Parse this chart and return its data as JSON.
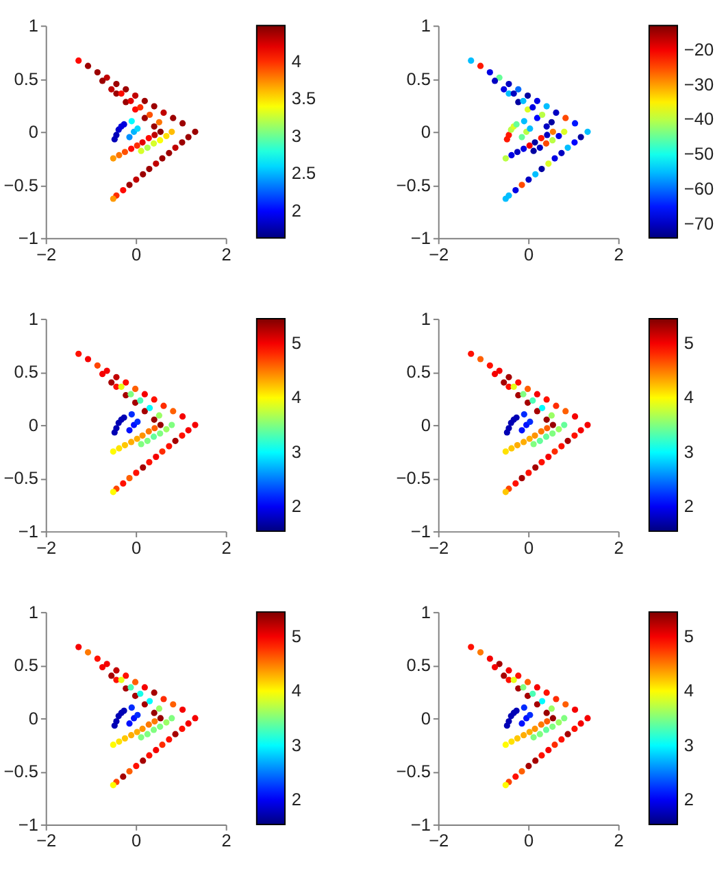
{
  "chart_data": [
    {
      "type": "scatter",
      "marker": "circle",
      "grid": false,
      "xlim": [
        -2,
        2
      ],
      "ylim": [
        -1,
        1
      ],
      "xticks": [
        -2,
        0,
        2
      ],
      "yticks": [
        -1,
        -0.5,
        0,
        0.5,
        1
      ],
      "clim": [
        1.64,
        4.48
      ],
      "cticks": [
        2,
        2.5,
        3,
        3.5,
        4
      ],
      "x": [
        -1.27,
        -1.06,
        -0.85,
        -0.64,
        -0.43,
        -0.22,
        -0.01,
        0.2,
        0.41,
        0.62,
        0.83,
        1.04,
        1.32,
        -0.74,
        -0.54,
        -0.43,
        -0.22,
        -0.01,
        0.2,
        0.41,
        0.55,
        -0.32,
        -0.11,
        0.1,
        0.31,
        0.52,
        0.8,
        0.68,
        0.54,
        0.4,
        0.26,
        0.12,
        1.17,
        1.03,
        0.88,
        0.74,
        0.59,
        0.45,
        0.3,
        0.16,
        0.01,
        -0.14,
        -0.28,
        -0.43,
        -0.5,
        0.42,
        0.29,
        0.15,
        0.03,
        -0.1,
        -0.24,
        -0.37,
        -0.5,
        -0.47,
        -0.43,
        -0.38,
        -0.32,
        -0.26,
        -0.14,
        -0.04,
        0.04,
        -0.09
      ],
      "values": [
        0.67,
        0.62,
        0.56,
        0.51,
        0.45,
        0.4,
        0.34,
        0.29,
        0.24,
        0.18,
        0.13,
        0.08,
        0,
        0.48,
        0.4,
        0.36,
        0.28,
        0.21,
        0.13,
        0.05,
        0,
        0.36,
        0.29,
        0.23,
        0.16,
        0.09,
        0,
        -0.04,
        -0.08,
        -0.11,
        -0.15,
        -0.18,
        -0.05,
        -0.1,
        -0.15,
        -0.2,
        -0.25,
        -0.3,
        -0.35,
        -0.4,
        -0.45,
        -0.5,
        -0.55,
        -0.6,
        -0.63,
        -0.03,
        -0.06,
        -0.1,
        -0.13,
        -0.16,
        -0.19,
        -0.22,
        -0.25,
        -0.07,
        -0.03,
        0.02,
        0.05,
        0.07,
        -0.05,
        0,
        0.03,
        0.1
      ],
      "cvalues": [
        4.1,
        4.4,
        4.4,
        4.3,
        4.4,
        4.4,
        4.3,
        4.4,
        4.4,
        4.3,
        4.4,
        4.4,
        4.4,
        4.4,
        4.3,
        4.4,
        4.4,
        4.1,
        4.4,
        4.4,
        4.45,
        4.1,
        4.2,
        4,
        3.9,
        3.8,
        3.6,
        3.5,
        3.4,
        3.3,
        3.2,
        3.3,
        4.4,
        4.4,
        4.3,
        4.4,
        4.4,
        4.3,
        4.4,
        4.4,
        4.3,
        4.4,
        4.1,
        4,
        3.7,
        4.3,
        4.1,
        4.2,
        4,
        4.1,
        3.9,
        3.8,
        3.7,
        1.8,
        1.8,
        1.85,
        1.9,
        1.9,
        2.4,
        2.5,
        2.6,
        2.7
      ]
    },
    {
      "type": "scatter",
      "marker": "circle",
      "grid": false,
      "xlim": [
        -2,
        2
      ],
      "ylim": [
        -1,
        1
      ],
      "xticks": [
        -2,
        0,
        2
      ],
      "yticks": [
        -1,
        -0.5,
        0,
        0.5,
        1
      ],
      "clim": [
        -74,
        -13
      ],
      "cticks": [
        -70,
        -60,
        -50,
        -40,
        -30,
        -20
      ],
      "x": [
        -1.27,
        -1.06,
        -0.85,
        -0.64,
        -0.43,
        -0.22,
        -0.01,
        0.2,
        0.41,
        0.62,
        0.83,
        1.04,
        1.32,
        -0.74,
        -0.54,
        -0.43,
        -0.22,
        -0.01,
        0.2,
        0.41,
        0.55,
        -0.32,
        -0.11,
        0.1,
        0.31,
        0.52,
        0.8,
        0.68,
        0.54,
        0.4,
        0.26,
        0.12,
        1.17,
        1.03,
        0.88,
        0.74,
        0.59,
        0.45,
        0.3,
        0.16,
        0.01,
        -0.14,
        -0.28,
        -0.43,
        -0.5,
        0.42,
        0.29,
        0.15,
        0.03,
        -0.1,
        -0.24,
        -0.37,
        -0.5,
        -0.47,
        -0.43,
        -0.38,
        -0.32,
        -0.26,
        -0.14,
        -0.04,
        0.04,
        -0.09
      ],
      "values": [
        0.67,
        0.62,
        0.56,
        0.51,
        0.45,
        0.4,
        0.34,
        0.29,
        0.24,
        0.18,
        0.13,
        0.08,
        0,
        0.48,
        0.4,
        0.36,
        0.28,
        0.21,
        0.13,
        0.05,
        0,
        0.36,
        0.29,
        0.23,
        0.16,
        0.09,
        0,
        -0.04,
        -0.08,
        -0.11,
        -0.15,
        -0.18,
        -0.05,
        -0.1,
        -0.15,
        -0.2,
        -0.25,
        -0.3,
        -0.35,
        -0.4,
        -0.45,
        -0.5,
        -0.55,
        -0.6,
        -0.63,
        -0.03,
        -0.06,
        -0.1,
        -0.13,
        -0.16,
        -0.19,
        -0.22,
        -0.25,
        -0.07,
        -0.03,
        0.02,
        0.05,
        0.07,
        -0.05,
        0,
        0.03,
        0.1
      ],
      "cvalues": [
        -55,
        -22,
        -68,
        -45,
        -70,
        -60,
        -72,
        -68,
        -55,
        -70,
        -25,
        -65,
        -55,
        -70,
        -68,
        -55,
        -72,
        -38,
        -66,
        -70,
        -28,
        -70,
        -55,
        -68,
        -40,
        -72,
        -38,
        -68,
        -40,
        -25,
        -70,
        -72,
        -72,
        -66,
        -55,
        -70,
        -68,
        -38,
        -72,
        -55,
        -70,
        -25,
        -68,
        -55,
        -55,
        -70,
        -22,
        -72,
        -20,
        -68,
        -70,
        -68,
        -40,
        -22,
        -22,
        -40,
        -38,
        -45,
        -45,
        -40,
        -55,
        -55
      ]
    },
    {
      "type": "scatter",
      "marker": "circle",
      "grid": false,
      "xlim": [
        -2,
        2
      ],
      "ylim": [
        -1,
        1
      ],
      "xticks": [
        -2,
        0,
        2
      ],
      "yticks": [
        -1,
        -0.5,
        0,
        0.5,
        1
      ],
      "clim": [
        1.55,
        5.45
      ],
      "cticks": [
        2,
        3,
        4,
        5
      ],
      "x": [
        -1.27,
        -1.06,
        -0.85,
        -0.64,
        -0.43,
        -0.22,
        -0.01,
        0.2,
        0.41,
        0.62,
        0.83,
        1.04,
        1.32,
        -0.74,
        -0.54,
        -0.43,
        -0.22,
        -0.01,
        0.2,
        0.41,
        0.55,
        -0.32,
        -0.11,
        0.1,
        0.31,
        0.52,
        0.8,
        0.68,
        0.54,
        0.4,
        0.26,
        0.12,
        1.17,
        1.03,
        0.88,
        0.74,
        0.59,
        0.45,
        0.3,
        0.16,
        0.01,
        -0.14,
        -0.28,
        -0.43,
        -0.5,
        0.42,
        0.29,
        0.15,
        0.03,
        -0.1,
        -0.24,
        -0.37,
        -0.5,
        -0.47,
        -0.43,
        -0.38,
        -0.32,
        -0.26,
        -0.14,
        -0.04,
        0.04,
        -0.09
      ],
      "values": [
        0.67,
        0.62,
        0.56,
        0.51,
        0.45,
        0.4,
        0.34,
        0.29,
        0.24,
        0.18,
        0.13,
        0.08,
        0,
        0.48,
        0.4,
        0.36,
        0.28,
        0.21,
        0.13,
        0.05,
        0,
        0.36,
        0.29,
        0.23,
        0.16,
        0.09,
        0,
        -0.04,
        -0.08,
        -0.11,
        -0.15,
        -0.18,
        -0.05,
        -0.1,
        -0.15,
        -0.2,
        -0.25,
        -0.3,
        -0.35,
        -0.4,
        -0.45,
        -0.5,
        -0.55,
        -0.6,
        -0.63,
        -0.03,
        -0.06,
        -0.1,
        -0.13,
        -0.16,
        -0.19,
        -0.22,
        -0.25,
        -0.07,
        -0.03,
        0.02,
        0.05,
        0.07,
        -0.05,
        0,
        0.03,
        0.1
      ],
      "cvalues": [
        4.9,
        5,
        4.7,
        5,
        5.2,
        4.9,
        4.6,
        5,
        4.9,
        4.8,
        4.6,
        5,
        5,
        5,
        5.3,
        4.9,
        5.3,
        5.3,
        5.3,
        5.35,
        5.35,
        3.9,
        3.5,
        3.3,
        3,
        3.6,
        3.5,
        3.6,
        3.5,
        3.4,
        3.5,
        3.5,
        5,
        4.9,
        5.3,
        4.9,
        4.8,
        5,
        4.9,
        5.3,
        4.9,
        4.6,
        4.9,
        4.7,
        4,
        4.6,
        4.5,
        4.4,
        4.3,
        4.3,
        4.2,
        4.1,
        4,
        1.75,
        1.75,
        1.75,
        1.75,
        1.75,
        2.1,
        2.1,
        2.2,
        2.2
      ]
    },
    {
      "type": "scatter",
      "marker": "circle",
      "grid": false,
      "xlim": [
        -2,
        2
      ],
      "ylim": [
        -1,
        1
      ],
      "xticks": [
        -2,
        0,
        2
      ],
      "yticks": [
        -1,
        -0.5,
        0,
        0.5,
        1
      ],
      "clim": [
        1.55,
        5.45
      ],
      "cticks": [
        2,
        3,
        4,
        5
      ],
      "x": [
        -1.27,
        -1.06,
        -0.85,
        -0.64,
        -0.43,
        -0.22,
        -0.01,
        0.2,
        0.41,
        0.62,
        0.83,
        1.04,
        1.32,
        -0.74,
        -0.54,
        -0.43,
        -0.22,
        -0.01,
        0.2,
        0.41,
        0.55,
        -0.32,
        -0.11,
        0.1,
        0.31,
        0.52,
        0.8,
        0.68,
        0.54,
        0.4,
        0.26,
        0.12,
        1.17,
        1.03,
        0.88,
        0.74,
        0.59,
        0.45,
        0.3,
        0.16,
        0.01,
        -0.14,
        -0.28,
        -0.43,
        -0.5,
        0.42,
        0.29,
        0.15,
        0.03,
        -0.1,
        -0.24,
        -0.37,
        -0.5,
        -0.47,
        -0.43,
        -0.38,
        -0.32,
        -0.26,
        -0.14,
        -0.04,
        0.04,
        -0.09
      ],
      "values": [
        0.67,
        0.62,
        0.56,
        0.51,
        0.45,
        0.4,
        0.34,
        0.29,
        0.24,
        0.18,
        0.13,
        0.08,
        0,
        0.48,
        0.4,
        0.36,
        0.28,
        0.21,
        0.13,
        0.05,
        0,
        0.36,
        0.29,
        0.23,
        0.16,
        0.09,
        0,
        -0.04,
        -0.08,
        -0.11,
        -0.15,
        -0.18,
        -0.05,
        -0.1,
        -0.15,
        -0.2,
        -0.25,
        -0.3,
        -0.35,
        -0.4,
        -0.45,
        -0.5,
        -0.55,
        -0.6,
        -0.63,
        -0.03,
        -0.06,
        -0.1,
        -0.13,
        -0.16,
        -0.19,
        -0.22,
        -0.25,
        -0.07,
        -0.03,
        0.02,
        0.05,
        0.07,
        -0.05,
        0,
        0.03,
        0.1
      ],
      "cvalues": [
        4.9,
        4.6,
        4.9,
        5,
        5.3,
        4.9,
        4.6,
        5,
        4.9,
        4.8,
        4.6,
        5,
        5,
        5,
        5.3,
        4.9,
        5.3,
        5.3,
        5.3,
        5.35,
        5.35,
        3.9,
        3.5,
        3.3,
        3,
        3.6,
        3.4,
        3.6,
        3.5,
        3.4,
        3.4,
        3.5,
        5,
        4.9,
        5.3,
        4.9,
        4.8,
        5,
        4.9,
        5.3,
        4.9,
        5.3,
        4.9,
        4.7,
        4.2,
        4.6,
        4.5,
        4.4,
        4.3,
        4.3,
        4.3,
        4.2,
        4.1,
        1.75,
        1.75,
        1.75,
        1.75,
        1.75,
        2.1,
        2.1,
        2.2,
        2.2
      ]
    },
    {
      "type": "scatter",
      "marker": "circle",
      "grid": false,
      "xlim": [
        -2,
        2
      ],
      "ylim": [
        -1,
        1
      ],
      "xticks": [
        -2,
        0,
        2
      ],
      "yticks": [
        -1,
        -0.5,
        0,
        0.5,
        1
      ],
      "clim": [
        1.55,
        5.45
      ],
      "cticks": [
        2,
        3,
        4,
        5
      ],
      "x": [
        -1.27,
        -1.06,
        -0.85,
        -0.64,
        -0.43,
        -0.22,
        -0.01,
        0.2,
        0.41,
        0.62,
        0.83,
        1.04,
        1.32,
        -0.74,
        -0.54,
        -0.43,
        -0.22,
        -0.01,
        0.2,
        0.41,
        0.55,
        -0.32,
        -0.11,
        0.1,
        0.31,
        0.52,
        0.8,
        0.68,
        0.54,
        0.4,
        0.26,
        0.12,
        1.17,
        1.03,
        0.88,
        0.74,
        0.59,
        0.45,
        0.3,
        0.16,
        0.01,
        -0.14,
        -0.28,
        -0.43,
        -0.5,
        0.42,
        0.29,
        0.15,
        0.03,
        -0.1,
        -0.24,
        -0.37,
        -0.5,
        -0.47,
        -0.43,
        -0.38,
        -0.32,
        -0.26,
        -0.14,
        -0.04,
        0.04,
        -0.09
      ],
      "values": [
        0.67,
        0.62,
        0.56,
        0.51,
        0.45,
        0.4,
        0.34,
        0.29,
        0.24,
        0.18,
        0.13,
        0.08,
        0,
        0.48,
        0.4,
        0.36,
        0.28,
        0.21,
        0.13,
        0.05,
        0,
        0.36,
        0.29,
        0.23,
        0.16,
        0.09,
        0,
        -0.04,
        -0.08,
        -0.11,
        -0.15,
        -0.18,
        -0.05,
        -0.1,
        -0.15,
        -0.2,
        -0.25,
        -0.3,
        -0.35,
        -0.4,
        -0.45,
        -0.5,
        -0.55,
        -0.6,
        -0.63,
        -0.03,
        -0.06,
        -0.1,
        -0.13,
        -0.16,
        -0.19,
        -0.22,
        -0.25,
        -0.07,
        -0.03,
        0.02,
        0.05,
        0.07,
        -0.05,
        0,
        0.03,
        0.1
      ],
      "cvalues": [
        5,
        4.5,
        4.9,
        5,
        5.2,
        4.9,
        4.6,
        5,
        5.3,
        4.8,
        4.6,
        5,
        5,
        5,
        5.3,
        4.9,
        5.3,
        5.3,
        5.3,
        5.35,
        5.35,
        3.9,
        3.3,
        3.1,
        3,
        3.6,
        3.5,
        3.6,
        3.5,
        3.5,
        3.5,
        3.5,
        5,
        4.9,
        5.3,
        4.9,
        4.8,
        5,
        4.9,
        5.3,
        4.9,
        4.6,
        5.3,
        4.7,
        4,
        4.5,
        4.5,
        4.4,
        4.3,
        4.3,
        4.2,
        4.1,
        4,
        1.75,
        1.75,
        1.75,
        1.75,
        1.75,
        2.1,
        2.1,
        2.2,
        2.2
      ]
    },
    {
      "type": "scatter",
      "marker": "circle",
      "grid": false,
      "xlim": [
        -2,
        2
      ],
      "ylim": [
        -1,
        1
      ],
      "xticks": [
        -2,
        0,
        2
      ],
      "yticks": [
        -1,
        -0.5,
        0,
        0.5,
        1
      ],
      "clim": [
        1.55,
        5.45
      ],
      "cticks": [
        2,
        3,
        4,
        5
      ],
      "x": [
        -1.27,
        -1.06,
        -0.85,
        -0.64,
        -0.43,
        -0.22,
        -0.01,
        0.2,
        0.41,
        0.62,
        0.83,
        1.04,
        1.32,
        -0.74,
        -0.54,
        -0.43,
        -0.22,
        -0.01,
        0.2,
        0.41,
        0.55,
        -0.32,
        -0.11,
        0.1,
        0.31,
        0.52,
        0.8,
        0.68,
        0.54,
        0.4,
        0.26,
        0.12,
        1.17,
        1.03,
        0.88,
        0.74,
        0.59,
        0.45,
        0.3,
        0.16,
        0.01,
        -0.14,
        -0.28,
        -0.43,
        -0.5,
        0.42,
        0.29,
        0.15,
        0.03,
        -0.1,
        -0.24,
        -0.37,
        -0.5,
        -0.47,
        -0.43,
        -0.38,
        -0.32,
        -0.26,
        -0.14,
        -0.04,
        0.04,
        -0.09
      ],
      "values": [
        0.67,
        0.62,
        0.56,
        0.51,
        0.45,
        0.4,
        0.34,
        0.29,
        0.24,
        0.18,
        0.13,
        0.08,
        0,
        0.48,
        0.4,
        0.36,
        0.28,
        0.21,
        0.13,
        0.05,
        0,
        0.36,
        0.29,
        0.23,
        0.16,
        0.09,
        0,
        -0.04,
        -0.08,
        -0.11,
        -0.15,
        -0.18,
        -0.05,
        -0.1,
        -0.15,
        -0.2,
        -0.25,
        -0.3,
        -0.35,
        -0.4,
        -0.45,
        -0.5,
        -0.55,
        -0.6,
        -0.63,
        -0.03,
        -0.06,
        -0.1,
        -0.13,
        -0.16,
        -0.19,
        -0.22,
        -0.25,
        -0.07,
        -0.03,
        0.02,
        0.05,
        0.07,
        -0.05,
        0,
        0.03,
        0.1
      ],
      "cvalues": [
        4.9,
        4.5,
        5,
        5.3,
        5,
        4.9,
        4.6,
        5,
        4.9,
        4.8,
        4.6,
        5,
        5,
        5,
        5.3,
        4.9,
        5.3,
        5.3,
        5.3,
        5.35,
        5.35,
        3.9,
        3.5,
        3.3,
        3,
        3.6,
        3.5,
        3.6,
        3.5,
        3.4,
        3.5,
        3.5,
        5,
        4.9,
        5.3,
        4.9,
        4.8,
        5,
        4.9,
        5.3,
        5.3,
        4.6,
        4.9,
        4.7,
        4,
        4.6,
        4.5,
        4.4,
        4.3,
        4.3,
        4.2,
        4.1,
        4,
        1.75,
        1.75,
        1.75,
        1.75,
        1.75,
        2.1,
        2.1,
        2.2,
        2.2
      ]
    }
  ]
}
